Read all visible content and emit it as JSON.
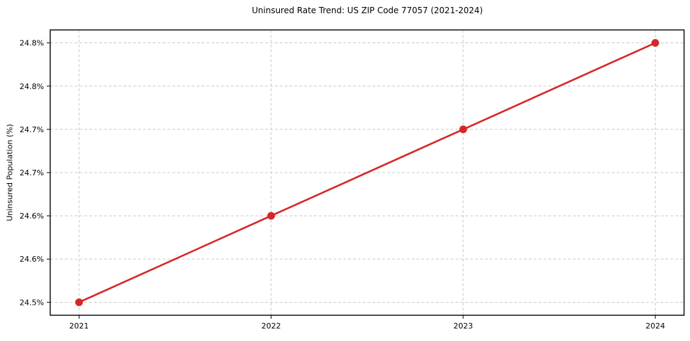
{
  "chart_data": {
    "type": "line",
    "title": "Uninsured Rate Trend: US ZIP Code 77057 (2021-2024)",
    "xlabel": "",
    "ylabel": "Uninsured Population (%)",
    "x": [
      2021,
      2022,
      2023,
      2024
    ],
    "y": [
      24.5,
      24.6,
      24.7,
      24.8
    ],
    "xticks": [
      {
        "value": 2021,
        "label": "2021"
      },
      {
        "value": 2022,
        "label": "2022"
      },
      {
        "value": 2023,
        "label": "2023"
      },
      {
        "value": 2024,
        "label": "2024"
      }
    ],
    "yticks": [
      {
        "value": 24.5,
        "label": "24.5%"
      },
      {
        "value": 24.55,
        "label": "24.6%"
      },
      {
        "value": 24.6,
        "label": "24.6%"
      },
      {
        "value": 24.65,
        "label": "24.7%"
      },
      {
        "value": 24.7,
        "label": "24.7%"
      },
      {
        "value": 24.75,
        "label": "24.8%"
      },
      {
        "value": 24.8,
        "label": "24.8%"
      }
    ],
    "xlim": [
      2020.85,
      2024.15
    ],
    "ylim": [
      24.485,
      24.815
    ],
    "line_color": "#d62728",
    "marker": "circle",
    "marker_radius": 5.5,
    "grid": "dashed",
    "grid_color": "#c9c9c9",
    "legend": "none"
  }
}
